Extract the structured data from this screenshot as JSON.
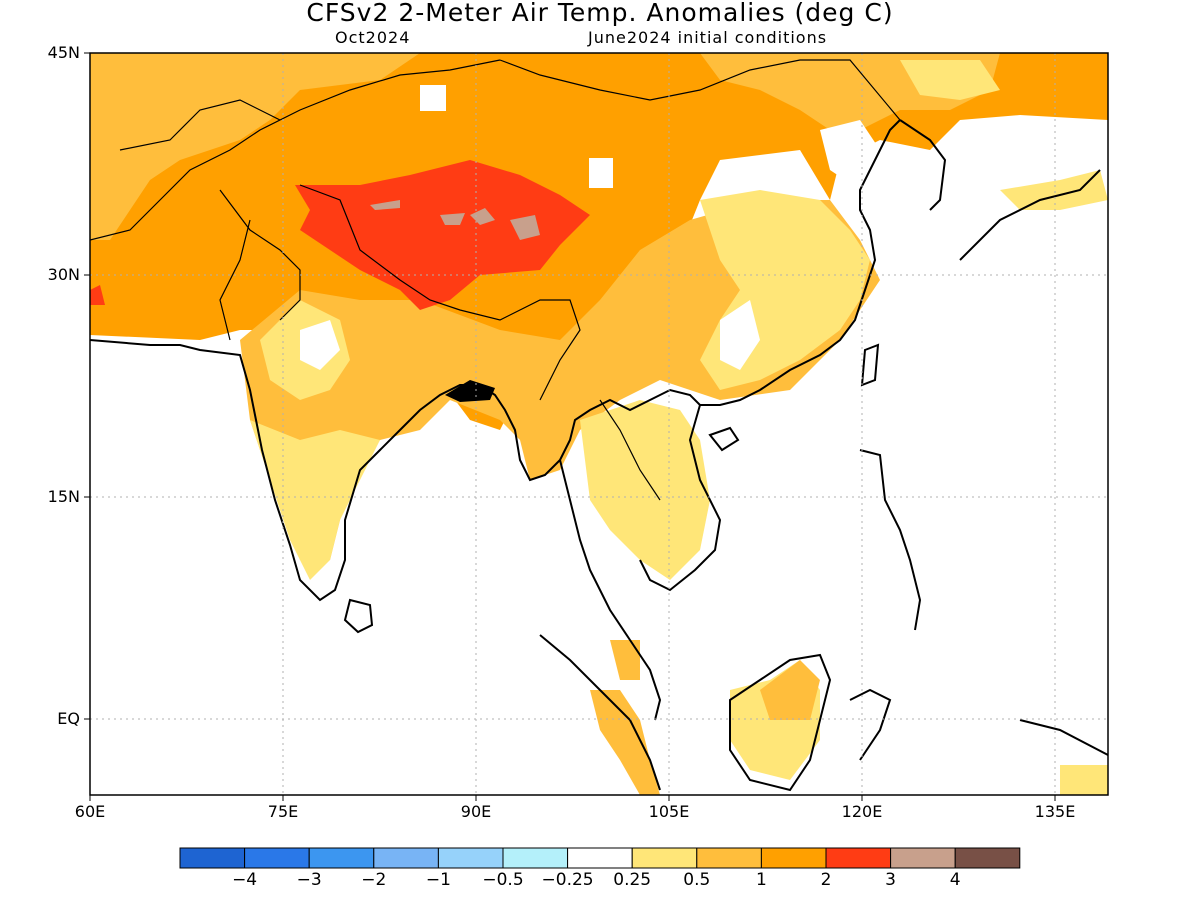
{
  "header": {
    "title": "CFSv2 2-Meter Air Temp. Anomalies (deg C)",
    "valid_month": "Oct2024",
    "init": "June2024 initial conditions"
  },
  "axes": {
    "y_ticks": [
      "45N",
      "30N",
      "15N",
      "EQ"
    ],
    "y_values": [
      45,
      30,
      15,
      0
    ],
    "x_ticks": [
      "60E",
      "75E",
      "90E",
      "105E",
      "120E",
      "135E"
    ],
    "x_values": [
      60,
      75,
      90,
      105,
      120,
      135
    ],
    "lon_range": [
      60,
      139
    ],
    "lat_range": [
      -5,
      45
    ]
  },
  "legend": {
    "colors": [
      "#1e64d2",
      "#2a78e8",
      "#3c96f0",
      "#78b4f5",
      "#96d2fa",
      "#b4f0fa",
      "#ffffff",
      "#ffe678",
      "#ffbe3c",
      "#ffa000",
      "#ff3c14",
      "#c8a08c",
      "#785046"
    ],
    "labels": [
      "-4",
      "-3",
      "-2",
      "-1",
      "-0.5",
      "-0.25",
      "0.25",
      "0.5",
      "1",
      "2",
      "3",
      "4"
    ]
  },
  "colors": {
    "light": "#ffe678",
    "medium": "#ffbe3c",
    "strong": "#ffa000",
    "hot": "#ff3c14",
    "extreme": "#c8a08c",
    "coast": "#000000"
  }
}
